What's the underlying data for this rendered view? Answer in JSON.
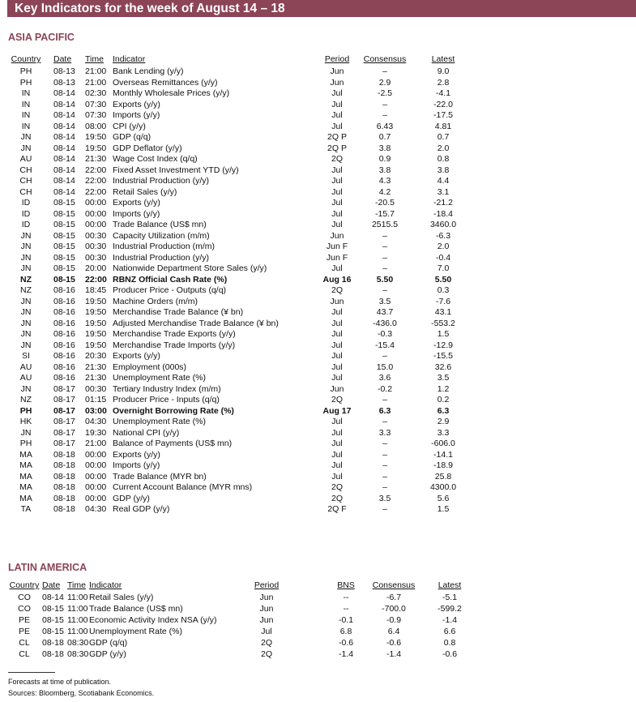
{
  "title": "Key Indicators for the week of August 14 – 18",
  "asia": {
    "heading": "ASIA PACIFIC",
    "headers": {
      "country": "Country",
      "date": "Date",
      "time": "Time",
      "indicator": "Indicator",
      "period": "Period",
      "consensus": "Consensus",
      "latest": "Latest"
    },
    "rows": [
      {
        "country": "PH",
        "date": "08-13",
        "time": "21:00",
        "indicator": "Bank Lending (y/y)",
        "period": "Jun",
        "consensus": "–",
        "latest": "9.0"
      },
      {
        "country": "PH",
        "date": "08-13",
        "time": "21:00",
        "indicator": "Overseas Remittances (y/y)",
        "period": "Jun",
        "consensus": "2.9",
        "latest": "2.8"
      },
      {
        "country": "IN",
        "date": "08-14",
        "time": "02:30",
        "indicator": "Monthly Wholesale Prices (y/y)",
        "period": "Jul",
        "consensus": "-2.5",
        "latest": "-4.1"
      },
      {
        "country": "IN",
        "date": "08-14",
        "time": "07:30",
        "indicator": "Exports (y/y)",
        "period": "Jul",
        "consensus": "–",
        "latest": "-22.0"
      },
      {
        "country": "IN",
        "date": "08-14",
        "time": "07:30",
        "indicator": "Imports (y/y)",
        "period": "Jul",
        "consensus": "–",
        "latest": "-17.5"
      },
      {
        "country": "IN",
        "date": "08-14",
        "time": "08:00",
        "indicator": "CPI (y/y)",
        "period": "Jul",
        "consensus": "6.43",
        "latest": "4.81"
      },
      {
        "country": "JN",
        "date": "08-14",
        "time": "19:50",
        "indicator": "GDP (q/q)",
        "period": "2Q P",
        "consensus": "0.7",
        "latest": "0.7"
      },
      {
        "country": "JN",
        "date": "08-14",
        "time": "19:50",
        "indicator": "GDP Deflator (y/y)",
        "period": "2Q P",
        "consensus": "3.8",
        "latest": "2.0"
      },
      {
        "country": "AU",
        "date": "08-14",
        "time": "21:30",
        "indicator": "Wage Cost Index (q/q)",
        "period": "2Q",
        "consensus": "0.9",
        "latest": "0.8"
      },
      {
        "country": "CH",
        "date": "08-14",
        "time": "22:00",
        "indicator": "Fixed Asset Investment YTD (y/y)",
        "period": "Jul",
        "consensus": "3.8",
        "latest": "3.8"
      },
      {
        "country": "CH",
        "date": "08-14",
        "time": "22:00",
        "indicator": "Industrial Production (y/y)",
        "period": "Jul",
        "consensus": "4.3",
        "latest": "4.4"
      },
      {
        "country": "CH",
        "date": "08-14",
        "time": "22:00",
        "indicator": "Retail Sales (y/y)",
        "period": "Jul",
        "consensus": "4.2",
        "latest": "3.1"
      },
      {
        "country": "ID",
        "date": "08-15",
        "time": "00:00",
        "indicator": "Exports (y/y)",
        "period": "Jul",
        "consensus": "-20.5",
        "latest": "-21.2"
      },
      {
        "country": "ID",
        "date": "08-15",
        "time": "00:00",
        "indicator": "Imports (y/y)",
        "period": "Jul",
        "consensus": "-15.7",
        "latest": "-18.4"
      },
      {
        "country": "ID",
        "date": "08-15",
        "time": "00:00",
        "indicator": "Trade Balance (US$ mn)",
        "period": "Jul",
        "consensus": "2515.5",
        "latest": "3460.0"
      },
      {
        "country": "JN",
        "date": "08-15",
        "time": "00:30",
        "indicator": "Capacity Utilization (m/m)",
        "period": "Jun",
        "consensus": "–",
        "latest": "-6.3"
      },
      {
        "country": "JN",
        "date": "08-15",
        "time": "00:30",
        "indicator": "Industrial Production (m/m)",
        "period": "Jun F",
        "consensus": "–",
        "latest": "2.0"
      },
      {
        "country": "JN",
        "date": "08-15",
        "time": "00:30",
        "indicator": "Industrial Production (y/y)",
        "period": "Jun F",
        "consensus": "–",
        "latest": "-0.4"
      },
      {
        "country": "JN",
        "date": "08-15",
        "time": "20:00",
        "indicator": "Nationwide Department Store Sales (y/y)",
        "period": "Jul",
        "consensus": "–",
        "latest": "7.0"
      },
      {
        "country": "NZ",
        "date": "08-15",
        "time": "22:00",
        "indicator": "RBNZ Official Cash Rate (%)",
        "period": "Aug 16",
        "consensus": "5.50",
        "latest": "5.50",
        "bold": true
      },
      {
        "country": "NZ",
        "date": "08-16",
        "time": "18:45",
        "indicator": "Producer Price - Outputs (q/q)",
        "period": "2Q",
        "consensus": "–",
        "latest": "0.3"
      },
      {
        "country": "JN",
        "date": "08-16",
        "time": "19:50",
        "indicator": "Machine Orders (m/m)",
        "period": "Jun",
        "consensus": "3.5",
        "latest": "-7.6"
      },
      {
        "country": "JN",
        "date": "08-16",
        "time": "19:50",
        "indicator": "Merchandise Trade Balance (¥ bn)",
        "period": "Jul",
        "consensus": "43.7",
        "latest": "43.1"
      },
      {
        "country": "JN",
        "date": "08-16",
        "time": "19:50",
        "indicator": "Adjusted Merchandise Trade Balance (¥ bn)",
        "period": "Jul",
        "consensus": "-436.0",
        "latest": "-553.2"
      },
      {
        "country": "JN",
        "date": "08-16",
        "time": "19:50",
        "indicator": "Merchandise Trade Exports (y/y)",
        "period": "Jul",
        "consensus": "-0.3",
        "latest": "1.5"
      },
      {
        "country": "JN",
        "date": "08-16",
        "time": "19:50",
        "indicator": "Merchandise Trade Imports (y/y)",
        "period": "Jul",
        "consensus": "-15.4",
        "latest": "-12.9"
      },
      {
        "country": "SI",
        "date": "08-16",
        "time": "20:30",
        "indicator": "Exports (y/y)",
        "period": "Jul",
        "consensus": "–",
        "latest": "-15.5"
      },
      {
        "country": "AU",
        "date": "08-16",
        "time": "21:30",
        "indicator": "Employment (000s)",
        "period": "Jul",
        "consensus": "15.0",
        "latest": "32.6"
      },
      {
        "country": "AU",
        "date": "08-16",
        "time": "21:30",
        "indicator": "Unemployment Rate (%)",
        "period": "Jul",
        "consensus": "3.6",
        "latest": "3.5"
      },
      {
        "country": "JN",
        "date": "08-17",
        "time": "00:30",
        "indicator": "Tertiary Industry Index (m/m)",
        "period": "Jun",
        "consensus": "-0.2",
        "latest": "1.2"
      },
      {
        "country": "NZ",
        "date": "08-17",
        "time": "01:15",
        "indicator": "Producer Price - Inputs (q/q)",
        "period": "2Q",
        "consensus": "–",
        "latest": "0.2"
      },
      {
        "country": "PH",
        "date": "08-17",
        "time": "03:00",
        "indicator": "Overnight Borrowing Rate (%)",
        "period": "Aug 17",
        "consensus": "6.3",
        "latest": "6.3",
        "bold": true
      },
      {
        "country": "HK",
        "date": "08-17",
        "time": "04:30",
        "indicator": "Unemployment Rate (%)",
        "period": "Jul",
        "consensus": "–",
        "latest": "2.9"
      },
      {
        "country": "JN",
        "date": "08-17",
        "time": "19:30",
        "indicator": "National CPI (y/y)",
        "period": "Jul",
        "consensus": "3.3",
        "latest": "3.3"
      },
      {
        "country": "PH",
        "date": "08-17",
        "time": "21:00",
        "indicator": "Balance of Payments (US$ mn)",
        "period": "Jul",
        "consensus": "–",
        "latest": "-606.0"
      },
      {
        "country": "MA",
        "date": "08-18",
        "time": "00:00",
        "indicator": "Exports (y/y)",
        "period": "Jul",
        "consensus": "–",
        "latest": "-14.1"
      },
      {
        "country": "MA",
        "date": "08-18",
        "time": "00:00",
        "indicator": "Imports (y/y)",
        "period": "Jul",
        "consensus": "–",
        "latest": "-18.9"
      },
      {
        "country": "MA",
        "date": "08-18",
        "time": "00:00",
        "indicator": "Trade Balance (MYR bn)",
        "period": "Jul",
        "consensus": "–",
        "latest": "25.8"
      },
      {
        "country": "MA",
        "date": "08-18",
        "time": "00:00",
        "indicator": "Current Account Balance (MYR mns)",
        "period": "2Q",
        "consensus": "–",
        "latest": "4300.0"
      },
      {
        "country": "MA",
        "date": "08-18",
        "time": "00:00",
        "indicator": "GDP (y/y)",
        "period": "2Q",
        "consensus": "3.5",
        "latest": "5.6"
      },
      {
        "country": "TA",
        "date": "08-18",
        "time": "04:30",
        "indicator": "Real GDP (y/y)",
        "period": "2Q F",
        "consensus": "–",
        "latest": "1.5"
      }
    ]
  },
  "latam": {
    "heading": "LATIN AMERICA",
    "headers": {
      "country": "Country",
      "date": "Date",
      "time": "Time",
      "indicator": "Indicator",
      "period": "Period",
      "bns": "BNS",
      "consensus": "Consensus",
      "latest": "Latest"
    },
    "rows": [
      {
        "country": "CO",
        "date": "08-14",
        "time": "11:00",
        "indicator": "Retail Sales (y/y)",
        "period": "Jun",
        "bns": "--",
        "consensus": "-6.7",
        "latest": "-5.1"
      },
      {
        "country": "CO",
        "date": "08-15",
        "time": "11:00",
        "indicator": "Trade Balance (US$ mn)",
        "period": "Jun",
        "bns": "--",
        "consensus": "-700.0",
        "latest": "-599.2"
      },
      {
        "country": "PE",
        "date": "08-15",
        "time": "11:00",
        "indicator": "Economic Activity Index NSA (y/y)",
        "period": "Jun",
        "bns": "-0.1",
        "consensus": "-0.9",
        "latest": "-1.4"
      },
      {
        "country": "PE",
        "date": "08-15",
        "time": "11:00",
        "indicator": "Unemployment Rate (%)",
        "period": "Jul",
        "bns": "6.8",
        "consensus": "6.4",
        "latest": "6.6"
      },
      {
        "country": "CL",
        "date": "08-18",
        "time": "08:30",
        "indicator": "GDP (q/q)",
        "period": "2Q",
        "bns": "-0.6",
        "consensus": "-0.6",
        "latest": "0.8"
      },
      {
        "country": "CL",
        "date": "08-18",
        "time": "08:30",
        "indicator": "GDP (y/y)",
        "period": "2Q",
        "bns": "-1.4",
        "consensus": "-1.4",
        "latest": "-0.6"
      }
    ]
  },
  "footnotes": {
    "forecasts": "Forecasts at time of publication.",
    "sources": "Sources: Bloomberg, Scotiabank Economics."
  }
}
